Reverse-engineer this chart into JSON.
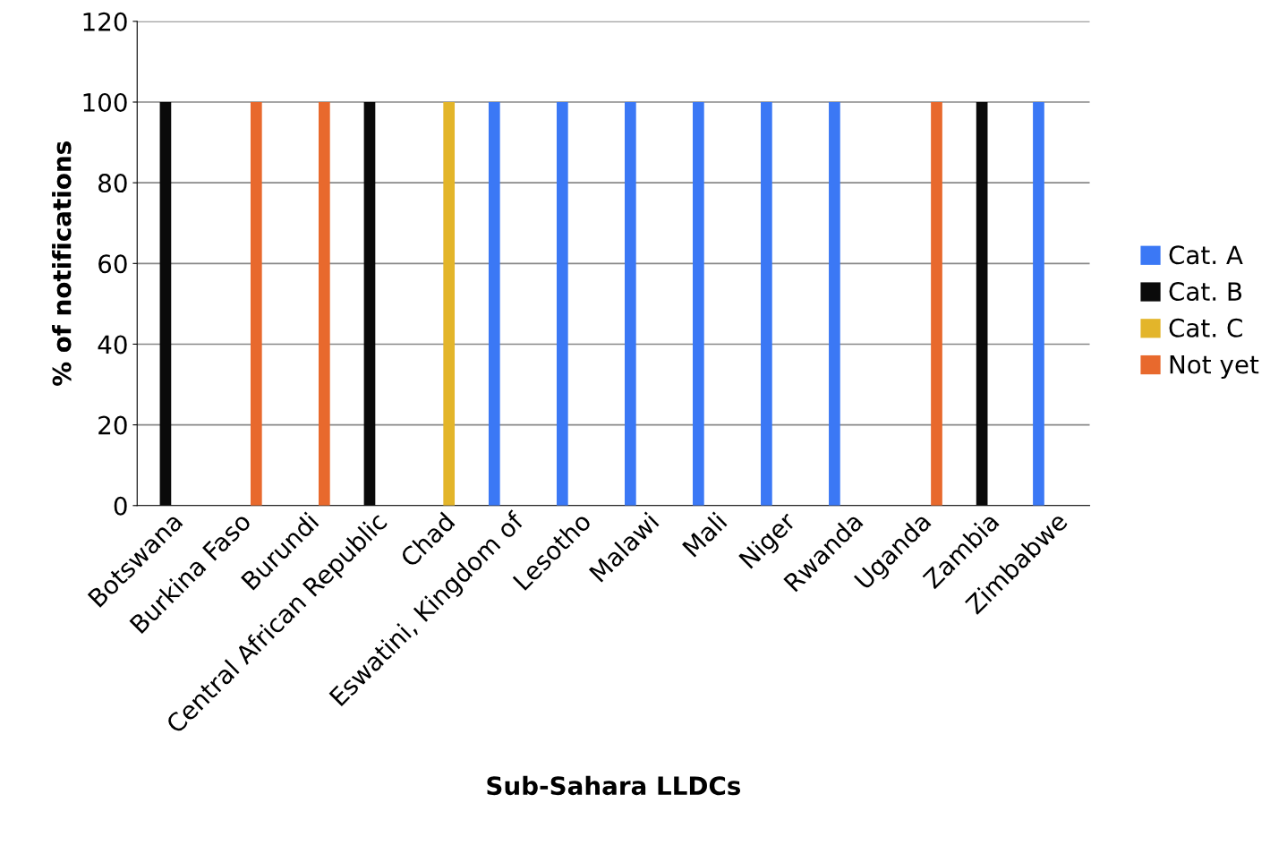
{
  "chart_data": {
    "type": "bar",
    "xlabel": "Sub-Sahara LLDCs",
    "ylabel": "% of notifications",
    "categories": [
      "Botswana",
      "Burkina Faso",
      "Burundi",
      "Central African Republic",
      "Chad",
      "Eswatini, Kingdom of",
      "Lesotho",
      "Malawi",
      "Mali",
      "Niger",
      "Rwanda",
      "Uganda",
      "Zambia",
      "Zimbabwe"
    ],
    "series": [
      {
        "name": "Cat. A",
        "color": "#3b78f5",
        "values": [
          null,
          null,
          null,
          null,
          null,
          100,
          100,
          100,
          100,
          100,
          100,
          null,
          null,
          100
        ]
      },
      {
        "name": "Cat. B",
        "color": "#0a0a0a",
        "values": [
          100,
          null,
          null,
          100,
          null,
          null,
          null,
          null,
          null,
          null,
          null,
          null,
          100,
          null
        ]
      },
      {
        "name": "Cat. C",
        "color": "#e3b52a",
        "values": [
          null,
          null,
          null,
          null,
          100,
          null,
          null,
          null,
          null,
          null,
          null,
          null,
          null,
          null
        ]
      },
      {
        "name": "Not yet",
        "color": "#e8692d",
        "values": [
          null,
          100,
          100,
          null,
          null,
          null,
          null,
          null,
          null,
          null,
          null,
          100,
          null,
          null
        ]
      }
    ],
    "ylim": [
      0,
      120
    ],
    "yticks": [
      0,
      20,
      40,
      60,
      80,
      100,
      120
    ],
    "grid": "y",
    "legend": "right"
  }
}
